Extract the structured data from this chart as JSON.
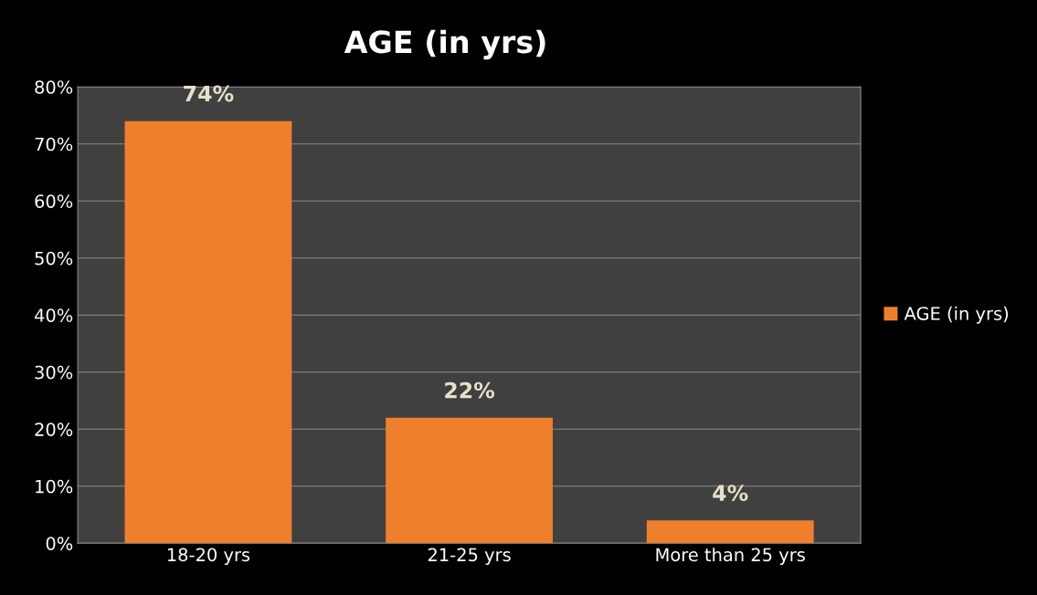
{
  "chart_data": {
    "type": "bar",
    "title": "AGE (in yrs)",
    "categories": [
      "18-20 yrs",
      "21-25 yrs",
      "More than 25 yrs"
    ],
    "series": [
      {
        "name": "AGE (in yrs)",
        "color": "#f07f2c",
        "values": [
          74,
          22,
          4
        ],
        "value_labels": [
          "74%",
          "22%",
          "4%"
        ]
      }
    ],
    "ylim": [
      0,
      80
    ],
    "yticks": [
      {
        "value": 0,
        "label": "0%"
      },
      {
        "value": 10,
        "label": "10%"
      },
      {
        "value": 20,
        "label": "20%"
      },
      {
        "value": 30,
        "label": "30%"
      },
      {
        "value": 40,
        "label": "40%"
      },
      {
        "value": 50,
        "label": "50%"
      },
      {
        "value": 60,
        "label": "60%"
      },
      {
        "value": 70,
        "label": "70%"
      },
      {
        "value": 80,
        "label": "80%"
      }
    ],
    "grid": "y",
    "legend": "right"
  }
}
